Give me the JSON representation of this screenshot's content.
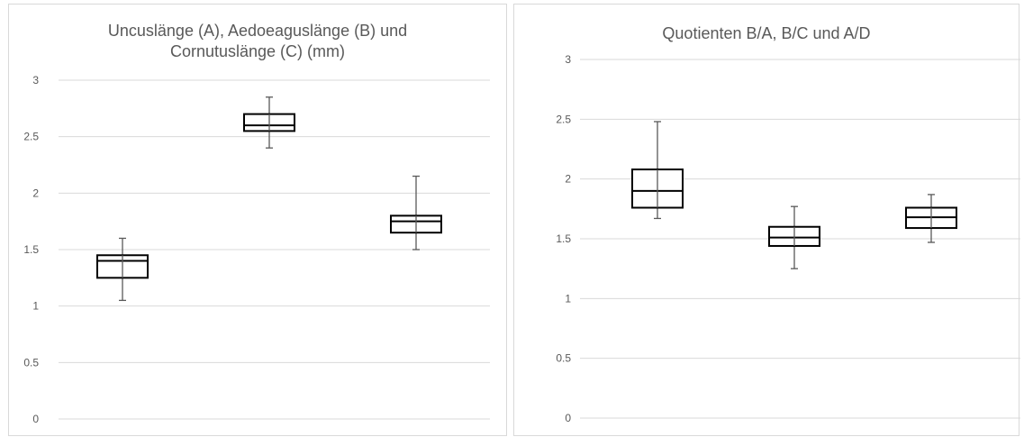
{
  "chart_data": [
    {
      "type": "boxplot",
      "title_lines": [
        "Uncuslänge (A), Aedoeaguslänge (B) und",
        "Cornutuslänge (C) (mm)"
      ],
      "ylim": [
        0,
        3
      ],
      "y_ticks": [
        "0",
        "0.5",
        "1",
        "1.5",
        "2",
        "2.5",
        "3"
      ],
      "grid": true,
      "boxes": [
        {
          "min": 1.05,
          "q1": 1.25,
          "median": 1.4,
          "q3": 1.45,
          "max": 1.6
        },
        {
          "min": 2.4,
          "q1": 2.55,
          "median": 2.6,
          "q3": 2.7,
          "max": 2.85
        },
        {
          "min": 1.5,
          "q1": 1.65,
          "median": 1.75,
          "q3": 1.8,
          "max": 2.15
        }
      ]
    },
    {
      "type": "boxplot",
      "title_lines": [
        "Quotienten B/A, B/C und A/D"
      ],
      "ylim": [
        0,
        3
      ],
      "y_ticks": [
        "0",
        "0.5",
        "1",
        "1.5",
        "2",
        "2.5",
        "3"
      ],
      "grid": true,
      "boxes": [
        {
          "min": 1.67,
          "q1": 1.76,
          "median": 1.9,
          "q3": 2.08,
          "max": 2.48
        },
        {
          "min": 1.25,
          "q1": 1.44,
          "median": 1.51,
          "q3": 1.6,
          "max": 1.77
        },
        {
          "min": 1.47,
          "q1": 1.59,
          "median": 1.68,
          "q3": 1.76,
          "max": 1.87
        }
      ]
    }
  ]
}
